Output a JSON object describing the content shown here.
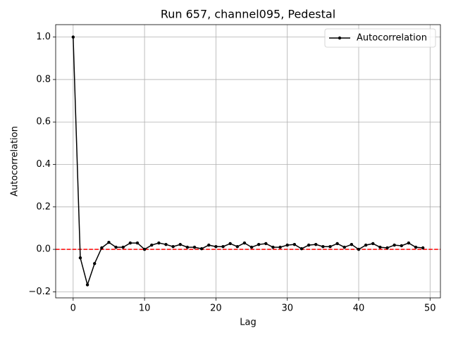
{
  "chart_data": {
    "type": "line",
    "title": "Run 657, channel095, Pedestal",
    "x_label": "Lag",
    "y_label": "Autocorrelation",
    "x": [
      0,
      1,
      2,
      3,
      4,
      5,
      6,
      7,
      8,
      9,
      10,
      11,
      12,
      13,
      14,
      15,
      16,
      17,
      18,
      19,
      20,
      21,
      22,
      23,
      24,
      25,
      26,
      27,
      28,
      29,
      30,
      31,
      32,
      33,
      34,
      35,
      36,
      37,
      38,
      39,
      40,
      41,
      42,
      43,
      44,
      45,
      46,
      47,
      48,
      49
    ],
    "series": [
      {
        "name": "Autocorrelation",
        "color": "#000000",
        "values": [
          1.0,
          -0.04,
          -0.167,
          -0.067,
          0.007,
          0.033,
          0.01,
          0.01,
          0.03,
          0.03,
          0.0,
          0.02,
          0.03,
          0.023,
          0.013,
          0.023,
          0.01,
          0.01,
          0.003,
          0.02,
          0.013,
          0.013,
          0.027,
          0.013,
          0.03,
          0.01,
          0.023,
          0.027,
          0.01,
          0.01,
          0.02,
          0.023,
          0.003,
          0.02,
          0.023,
          0.013,
          0.013,
          0.027,
          0.01,
          0.023,
          0.0,
          0.02,
          0.027,
          0.01,
          0.007,
          0.02,
          0.017,
          0.03,
          0.01,
          0.007
        ]
      }
    ],
    "reference_line": {
      "value": 0,
      "color": "#ff0000"
    },
    "xlim": [
      -2.45,
      51.45
    ],
    "ylim": [
      -0.2285,
      1.0585
    ],
    "xticks": [
      0,
      10,
      20,
      30,
      40,
      50
    ],
    "yticks": [
      {
        "value": -0.2,
        "label": "−0.2"
      },
      {
        "value": 0,
        "label": "0.0"
      },
      {
        "value": 0.2,
        "label": "0.2"
      },
      {
        "value": 0.4,
        "label": "0.4"
      },
      {
        "value": 0.6,
        "label": "0.6"
      },
      {
        "value": 0.8,
        "label": "0.8"
      },
      {
        "value": 1.0,
        "label": "1.0"
      }
    ],
    "grid": true,
    "legend": "upper right"
  }
}
